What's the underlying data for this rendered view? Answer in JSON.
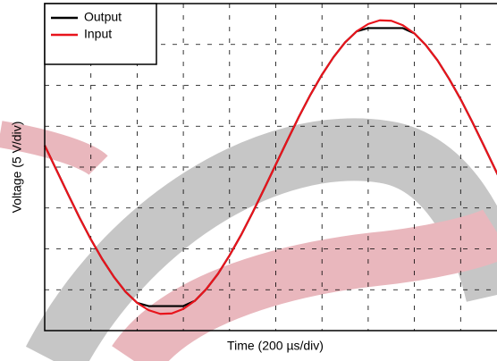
{
  "chart_data": {
    "type": "line",
    "x_label": "Time (200 µs/div)",
    "y_label": "Voltage (5 V/div)",
    "x": [
      0,
      0.25,
      0.5,
      0.75,
      1,
      1.25,
      1.5,
      1.75,
      2,
      2.25,
      2.5,
      2.75,
      3,
      3.25,
      3.5,
      3.75,
      4,
      4.25,
      4.5,
      4.75,
      5,
      5.25,
      5.5,
      5.75,
      6,
      6.25,
      6.5,
      6.75,
      7,
      7.25,
      7.5,
      7.75,
      8,
      8.25,
      8.5,
      8.75,
      9,
      9.25,
      9.5,
      9.75,
      10
    ],
    "series": [
      {
        "name": "Output",
        "color": "#000000",
        "values": [
          0.53,
          -0.06,
          -0.65,
          -1.23,
          -1.77,
          -2.26,
          -2.69,
          -3.05,
          -3.32,
          -3.4,
          -3.4,
          -3.4,
          -3.4,
          -3.27,
          -2.98,
          -2.61,
          -2.16,
          -1.66,
          -1.11,
          -0.53,
          0.06,
          0.65,
          1.23,
          1.77,
          2.26,
          2.69,
          3.05,
          3.32,
          3.4,
          3.4,
          3.4,
          3.4,
          3.27,
          2.98,
          2.61,
          2.16,
          1.66,
          1.11,
          0.53,
          -0.06,
          -0.65
        ]
      },
      {
        "name": "Input",
        "color": "#e8141c",
        "values": [
          0.53,
          -0.06,
          -0.65,
          -1.23,
          -1.77,
          -2.26,
          -2.69,
          -3.05,
          -3.32,
          -3.5,
          -3.59,
          -3.58,
          -3.47,
          -3.27,
          -2.98,
          -2.61,
          -2.16,
          -1.66,
          -1.11,
          -0.53,
          0.06,
          0.65,
          1.23,
          1.77,
          2.26,
          2.69,
          3.05,
          3.32,
          3.5,
          3.59,
          3.58,
          3.47,
          3.27,
          2.98,
          2.61,
          2.16,
          1.66,
          1.11,
          0.53,
          -0.06,
          -0.65
        ]
      }
    ],
    "xlim": [
      0,
      10
    ],
    "ylim": [
      -4,
      4
    ],
    "xticks": [
      0,
      1,
      2,
      3,
      4,
      5,
      6,
      7,
      8,
      9,
      10
    ],
    "yticks": [
      -4,
      -3,
      -2,
      -1,
      0,
      1,
      2,
      3,
      4
    ],
    "grid": true,
    "legend": "upper-left"
  }
}
